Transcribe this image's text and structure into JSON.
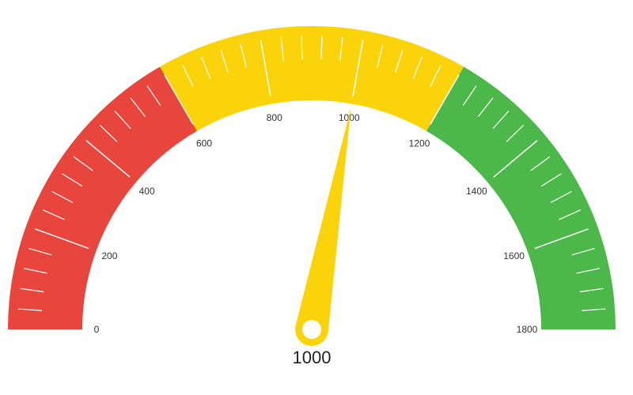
{
  "chart_data": {
    "type": "gauge",
    "min": 0,
    "max": 1800,
    "value": 1000,
    "value_label": "1000",
    "bands": [
      {
        "from": 0,
        "to": 600,
        "color": "#e8453c"
      },
      {
        "from": 600,
        "to": 1200,
        "color": "#fbd30b"
      },
      {
        "from": 1200,
        "to": 1800,
        "color": "#4db84a"
      }
    ],
    "major_ticks": [
      {
        "value": 0,
        "label": "0"
      },
      {
        "value": 200,
        "label": "200"
      },
      {
        "value": 400,
        "label": "400"
      },
      {
        "value": 600,
        "label": "600"
      },
      {
        "value": 800,
        "label": "800"
      },
      {
        "value": 1000,
        "label": "1000"
      },
      {
        "value": 1200,
        "label": "1200"
      },
      {
        "value": 1400,
        "label": "1400"
      },
      {
        "value": 1600,
        "label": "1600"
      },
      {
        "value": 1800,
        "label": "1800"
      }
    ],
    "minor_tick_interval": 40,
    "tick_color": "#ffffff",
    "needle_color": "#fbd30b"
  }
}
